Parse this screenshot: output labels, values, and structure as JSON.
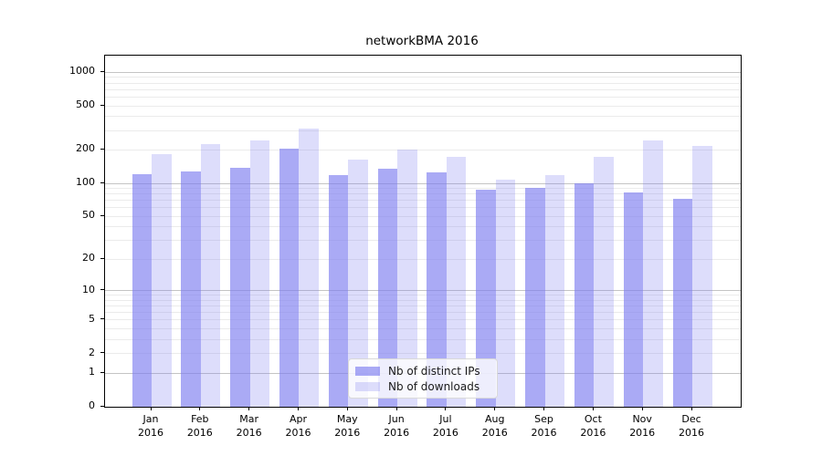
{
  "title": "networkBMA 2016",
  "legend": {
    "items": [
      {
        "label": "Nb of distinct IPs",
        "color": "rgba(122,122,240,0.64)"
      },
      {
        "label": "Nb of downloads",
        "color": "rgba(122,122,240,0.26)"
      }
    ]
  },
  "chart_data": {
    "type": "bar",
    "title": "networkBMA 2016",
    "categories": [
      "Jan",
      "Feb",
      "Mar",
      "Apr",
      "May",
      "Jun",
      "Jul",
      "Aug",
      "Sep",
      "Oct",
      "Nov",
      "Dec"
    ],
    "year_label": "2016",
    "series": [
      {
        "name": "Nb of distinct IPs",
        "color": "rgba(122,122,240,0.64)",
        "values": [
          121,
          127,
          139,
          207,
          119,
          135,
          126,
          88,
          91,
          100,
          82,
          72
        ]
      },
      {
        "name": "Nb of downloads",
        "color": "rgba(122,122,240,0.26)",
        "values": [
          183,
          225,
          246,
          312,
          163,
          203,
          172,
          108,
          119,
          174,
          246,
          217
        ]
      }
    ],
    "xlabel": "",
    "ylabel": "",
    "yscale": "log1p",
    "ylim": [
      0,
      1411
    ],
    "yticks_labeled": [
      0,
      1,
      2,
      5,
      10,
      20,
      50,
      100,
      200,
      500,
      1000
    ],
    "gridlines_major": [
      1,
      10,
      100,
      1000
    ],
    "gridlines_minor": [
      2,
      3,
      4,
      5,
      6,
      7,
      8,
      9,
      20,
      30,
      40,
      50,
      60,
      70,
      80,
      90,
      200,
      300,
      400,
      500,
      600,
      700,
      800,
      900
    ],
    "grid": true,
    "legend_position": "lower center"
  }
}
